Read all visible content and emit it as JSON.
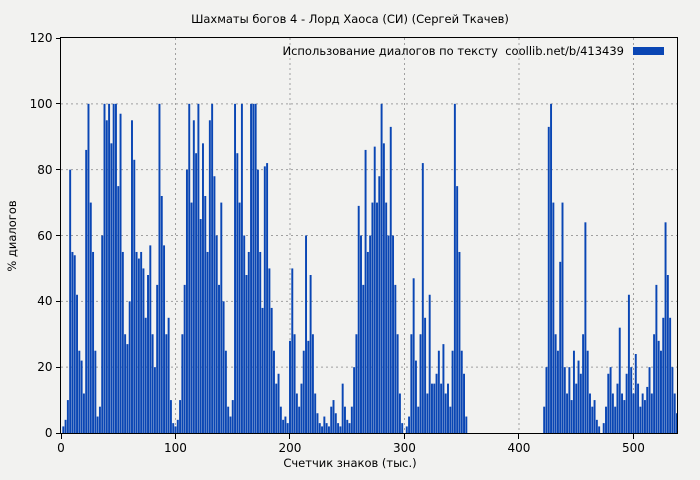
{
  "chart": {
    "kind": "bar-spike-plot"
  },
  "chart_data": {
    "type": "bar",
    "title": "Шахматы богов 4 - Лорд Хаоса (СИ) (Сергей Ткачев)",
    "legend": [
      "Использование диалогов по тексту  coollib.net/b/413439"
    ],
    "legend_position": "top-right-inside",
    "xlabel": "Счетчик знаков (тыс.)",
    "ylabel": "% диалогов",
    "xlim": [
      0,
      538
    ],
    "ylim": [
      0,
      120
    ],
    "xticks": [
      0,
      100,
      200,
      300,
      400,
      500
    ],
    "yticks": [
      0,
      20,
      40,
      60,
      80,
      100,
      120
    ],
    "grid": true,
    "grid_style": "dotted",
    "grid_color": "#a0a0a0",
    "bar_color": "#0a46b4",
    "background_color": "#f2f2f0",
    "x_start": 0,
    "x_step": 2,
    "values": [
      0,
      2,
      4,
      10,
      80,
      55,
      54,
      42,
      25,
      22,
      12,
      86,
      100,
      70,
      55,
      25,
      5,
      8,
      60,
      100,
      95,
      100,
      88,
      100,
      100,
      75,
      97,
      55,
      30,
      27,
      40,
      95,
      83,
      55,
      53,
      55,
      50,
      35,
      48,
      57,
      30,
      20,
      45,
      100,
      72,
      57,
      30,
      35,
      10,
      3,
      2,
      4,
      10,
      30,
      45,
      80,
      100,
      70,
      95,
      85,
      100,
      65,
      88,
      72,
      55,
      95,
      100,
      78,
      60,
      45,
      70,
      40,
      25,
      8,
      5,
      10,
      100,
      85,
      70,
      100,
      60,
      48,
      55,
      100,
      100,
      100,
      80,
      55,
      38,
      81,
      82,
      50,
      38,
      25,
      15,
      18,
      8,
      4,
      5,
      3,
      28,
      50,
      30,
      12,
      8,
      15,
      25,
      60,
      28,
      48,
      30,
      12,
      6,
      3,
      2,
      5,
      3,
      2,
      8,
      10,
      6,
      3,
      2,
      15,
      8,
      4,
      3,
      8,
      20,
      30,
      69,
      60,
      45,
      86,
      55,
      60,
      70,
      87,
      70,
      78,
      100,
      88,
      70,
      60,
      93,
      60,
      45,
      30,
      12,
      3,
      0,
      2,
      5,
      30,
      47,
      22,
      8,
      30,
      82,
      35,
      12,
      42,
      15,
      15,
      18,
      25,
      15,
      27,
      12,
      15,
      8,
      25,
      100,
      75,
      55,
      25,
      18,
      5,
      0,
      0,
      0,
      0,
      0,
      0,
      0,
      0,
      0,
      0,
      0,
      0,
      0,
      0,
      0,
      0,
      0,
      0,
      0,
      0,
      0,
      0,
      0,
      0,
      0,
      0,
      0,
      0,
      0,
      0,
      0,
      0,
      0,
      8,
      20,
      93,
      100,
      70,
      30,
      25,
      52,
      70,
      20,
      12,
      20,
      10,
      25,
      15,
      22,
      18,
      30,
      64,
      25,
      12,
      8,
      10,
      4,
      2,
      0,
      3,
      8,
      18,
      20,
      12,
      8,
      15,
      32,
      12,
      10,
      18,
      42,
      20,
      12,
      24,
      15,
      8,
      12,
      10,
      14,
      20,
      12,
      30,
      45,
      28,
      25,
      35,
      64,
      48,
      35,
      20,
      12,
      6
    ]
  }
}
